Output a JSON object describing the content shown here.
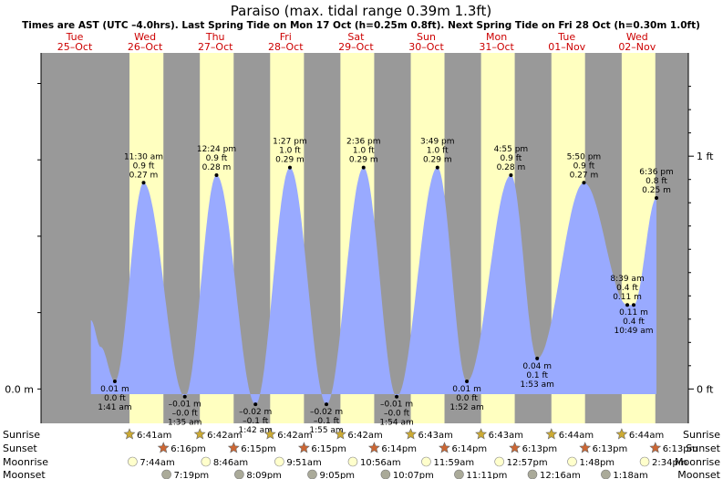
{
  "title": "Paraiso (max. tidal range 0.39m 1.3ft)",
  "subtitle": "Times are AST (UTC –4.0hrs). Last Spring Tide on Mon 17 Oct (h=0.25m 0.8ft). Next Spring Tide on Fri 28 Oct (h=0.30m 1.0ft)",
  "days": [
    {
      "dow": "Tue",
      "date": "25–Oct"
    },
    {
      "dow": "Wed",
      "date": "26–Oct"
    },
    {
      "dow": "Thu",
      "date": "27–Oct"
    },
    {
      "dow": "Fri",
      "date": "28–Oct"
    },
    {
      "dow": "Sat",
      "date": "29–Oct"
    },
    {
      "dow": "Sun",
      "date": "30–Oct"
    },
    {
      "dow": "Mon",
      "date": "31–Oct"
    },
    {
      "dow": "Tue",
      "date": "01–Nov"
    },
    {
      "dow": "Wed",
      "date": "02–Nov"
    }
  ],
  "axis": {
    "left_label": "0.0 m",
    "right_labels": [
      "0 ft",
      "1 ft"
    ]
  },
  "row_labels": [
    "Sunrise",
    "Sunset",
    "Moonrise",
    "Moonset"
  ],
  "colors": {
    "night": "#999999",
    "day": "#ffffc0",
    "water": "#99aaff",
    "day_label": "#cc0000",
    "sun_icon": "#ccaa33",
    "sunset_icon": "#cc6633",
    "moonrise_icon": "#ffffcc",
    "moonset_icon": "#aaaa99"
  },
  "chart_data": {
    "type": "area",
    "ylabel": "",
    "units": "m",
    "ylim_m": [
      -0.045,
      0.44
    ],
    "extremes": [
      {
        "type": "low",
        "time": "1:41 am",
        "m": "0.01 m",
        "ft": "0.0 ft",
        "day": 1,
        "hour": 1.68,
        "value": 0.01
      },
      {
        "type": "high",
        "time": "11:30 am",
        "ft": "0.9 ft",
        "m": "0.27 m",
        "day": 1,
        "hour": 11.5,
        "value": 0.27
      },
      {
        "type": "low",
        "time": "1:35 am",
        "m": "–0.01 m",
        "ft": "–0.0 ft",
        "day": 2,
        "hour": 1.58,
        "value": -0.01
      },
      {
        "type": "high",
        "time": "12:24 pm",
        "ft": "0.9 ft",
        "m": "0.28 m",
        "day": 2,
        "hour": 12.4,
        "value": 0.28
      },
      {
        "type": "low",
        "time": "1:42 am",
        "m": "–0.02 m",
        "ft": "–0.1 ft",
        "day": 3,
        "hour": 1.7,
        "value": -0.02
      },
      {
        "type": "high",
        "time": "1:27 pm",
        "ft": "1.0 ft",
        "m": "0.29 m",
        "day": 3,
        "hour": 13.45,
        "value": 0.29
      },
      {
        "type": "low",
        "time": "1:55 am",
        "m": "–0.02 m",
        "ft": "–0.1 ft",
        "day": 4,
        "hour": 1.92,
        "value": -0.02
      },
      {
        "type": "high",
        "time": "2:36 pm",
        "ft": "1.0 ft",
        "m": "0.29 m",
        "day": 4,
        "hour": 14.6,
        "value": 0.29
      },
      {
        "type": "low",
        "time": "1:54 am",
        "m": "–0.01 m",
        "ft": "–0.0 ft",
        "day": 5,
        "hour": 1.9,
        "value": -0.01
      },
      {
        "type": "high",
        "time": "3:49 pm",
        "ft": "1.0 ft",
        "m": "0.29 m",
        "day": 5,
        "hour": 15.82,
        "value": 0.29
      },
      {
        "type": "low",
        "time": "1:52 am",
        "m": "0.01 m",
        "ft": "0.0 ft",
        "day": 6,
        "hour": 1.87,
        "value": 0.01
      },
      {
        "type": "high",
        "time": "4:55 pm",
        "ft": "0.9 ft",
        "m": "0.28 m",
        "day": 6,
        "hour": 16.92,
        "value": 0.28
      },
      {
        "type": "low",
        "time": "1:53 am",
        "m": "0.04 m",
        "ft": "0.1 ft",
        "day": 7,
        "hour": 1.88,
        "value": 0.04
      },
      {
        "type": "high",
        "time": "5:50 pm",
        "ft": "0.9 ft",
        "m": "0.27 m",
        "day": 7,
        "hour": 17.83,
        "value": 0.27
      },
      {
        "type": "high",
        "time": "8:39 am",
        "ft": "0.4 ft",
        "m": "0.11 m",
        "day": 8,
        "hour": 8.65,
        "value": 0.11
      },
      {
        "type": "low",
        "time": "10:49 am",
        "m": "0.11 m",
        "ft": "0.4 ft",
        "day": 8,
        "hour": 10.82,
        "value": 0.11
      },
      {
        "type": "high",
        "time": "6:36 pm",
        "ft": "0.8 ft",
        "m": "0.25 m",
        "day": 8,
        "hour": 18.6,
        "value": 0.25
      }
    ],
    "series_start": {
      "day": 0,
      "hour": 17.5,
      "value": 0.09
    },
    "sun": [
      {
        "rise": "6:41am",
        "set": "6:16pm"
      },
      {
        "rise": "6:42am",
        "set": "6:15pm"
      },
      {
        "rise": "6:42am",
        "set": "6:15pm"
      },
      {
        "rise": "6:42am",
        "set": "6:14pm"
      },
      {
        "rise": "6:43am",
        "set": "6:14pm"
      },
      {
        "rise": "6:43am",
        "set": "6:13pm"
      },
      {
        "rise": "6:44am",
        "set": "6:13pm"
      },
      {
        "rise": "6:44am",
        "set": "6:13pm"
      }
    ],
    "moonrise": [
      "7:44am",
      "8:46am",
      "9:51am",
      "10:56am",
      "11:59am",
      "12:57pm",
      "1:48pm",
      "2:34pm"
    ],
    "moonset": [
      "7:19pm",
      "8:09pm",
      "9:05pm",
      "10:07pm",
      "11:11pm",
      "12:16am",
      "1:18am"
    ]
  }
}
